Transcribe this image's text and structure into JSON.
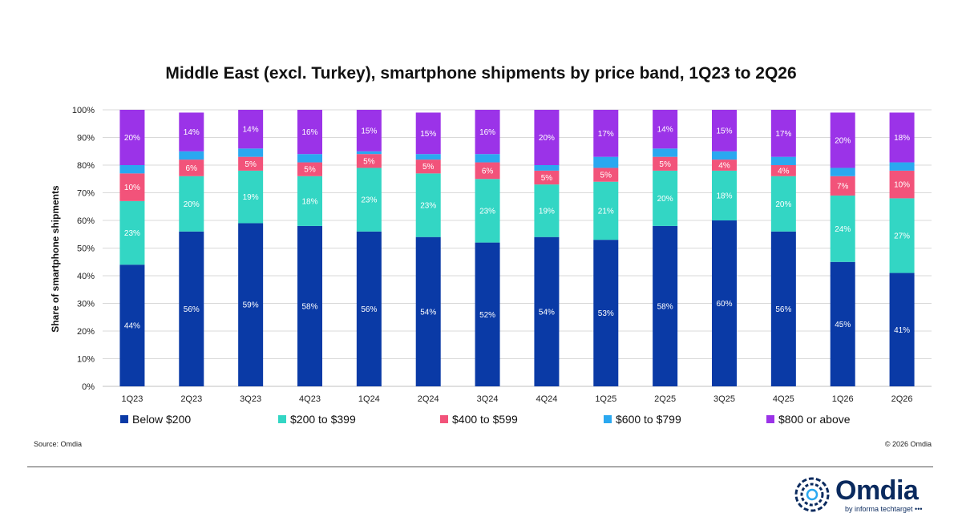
{
  "chart_data": {
    "type": "bar",
    "stacked": true,
    "title": "Middle East (excl. Turkey), smartphone shipments by price band, 1Q23 to 2Q26",
    "ylabel": "Share of smartphone shipments",
    "xlabel": "",
    "ylim": [
      0,
      100
    ],
    "yticks": [
      "0%",
      "10%",
      "20%",
      "30%",
      "40%",
      "50%",
      "60%",
      "70%",
      "80%",
      "90%",
      "100%"
    ],
    "grid": true,
    "legend_position": "bottom",
    "categories": [
      "1Q23",
      "2Q23",
      "3Q23",
      "4Q23",
      "1Q24",
      "2Q24",
      "3Q24",
      "4Q24",
      "1Q25",
      "2Q25",
      "3Q25",
      "4Q25",
      "1Q26",
      "2Q26"
    ],
    "series": [
      {
        "name": "Below $200",
        "color": "#0a3aa6",
        "values": [
          44,
          56,
          59,
          58,
          56,
          54,
          52,
          54,
          53,
          58,
          60,
          56,
          45,
          41
        ],
        "labels": [
          "44%",
          "56%",
          "59%",
          "58%",
          "56%",
          "54%",
          "52%",
          "54%",
          "53%",
          "58%",
          "60%",
          "56%",
          "45%",
          "41%"
        ]
      },
      {
        "name": "$200 to $399",
        "color": "#33d6c4",
        "values": [
          23,
          20,
          19,
          18,
          23,
          23,
          23,
          19,
          21,
          20,
          18,
          20,
          24,
          27
        ],
        "labels": [
          "23%",
          "20%",
          "19%",
          "18%",
          "23%",
          "23%",
          "23%",
          "19%",
          "21%",
          "20%",
          "18%",
          "20%",
          "24%",
          "27%"
        ]
      },
      {
        "name": "$400 to $599",
        "color": "#f2537a",
        "values": [
          10,
          6,
          5,
          5,
          5,
          5,
          6,
          5,
          5,
          5,
          4,
          4,
          7,
          10
        ],
        "labels": [
          "10%",
          "6%",
          "5%",
          "5%",
          "5%",
          "5%",
          "6%",
          "5%",
          "5%",
          "5%",
          "4%",
          "4%",
          "7%",
          "10%"
        ]
      },
      {
        "name": "$600 to $799",
        "color": "#2aa8f0",
        "values": [
          3,
          3,
          3,
          3,
          1,
          2,
          3,
          2,
          4,
          3,
          3,
          3,
          3,
          3
        ],
        "labels": [
          "",
          "",
          "",
          "",
          "",
          "",
          "",
          "",
          "",
          "",
          "",
          "",
          "",
          ""
        ]
      },
      {
        "name": "$800 or above",
        "color": "#9b33e8",
        "values": [
          20,
          14,
          14,
          16,
          15,
          15,
          16,
          20,
          17,
          14,
          15,
          17,
          20,
          18
        ],
        "labels": [
          "20%",
          "14%",
          "14%",
          "16%",
          "15%",
          "15%",
          "16%",
          "20%",
          "17%",
          "14%",
          "15%",
          "17%",
          "20%",
          "18%"
        ]
      }
    ]
  },
  "footer": {
    "source": "Source: Omdia",
    "copyright": "© 2026 Omdia"
  },
  "logo": {
    "word": "Omdia",
    "tagline": "by informa techtarget •••",
    "icon": "omdia-circle-logo-icon",
    "color": "#0a2a5e"
  }
}
